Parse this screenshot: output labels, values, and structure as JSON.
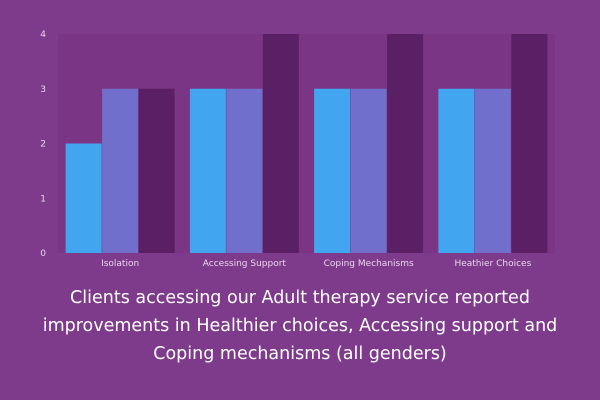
{
  "chart_data": {
    "type": "bar",
    "categories": [
      "Isolation",
      "Accessing Support",
      "Coping Mechanisms",
      "Heathier Choices"
    ],
    "series": [
      {
        "values": [
          2,
          3,
          3,
          3
        ],
        "color": "#42a5f0"
      },
      {
        "values": [
          3,
          3,
          3,
          3
        ],
        "color": "#7070cc"
      },
      {
        "values": [
          3,
          4,
          4,
          4
        ],
        "color": "#5a1f64"
      }
    ],
    "y_ticks": [
      "0",
      "1",
      "2",
      "3",
      "4"
    ],
    "ylim": [
      0,
      4
    ],
    "grid": false,
    "colors": {
      "background": "#7e3b8c",
      "plot_background": "#7a3585",
      "tick_text": "#e8d7ea"
    }
  },
  "caption": {
    "line1": "Clients accessing our Adult therapy service reported",
    "line2": "improvements in Healthier choices, Accessing support and",
    "line3": "Coping mechanisms (all genders)"
  }
}
